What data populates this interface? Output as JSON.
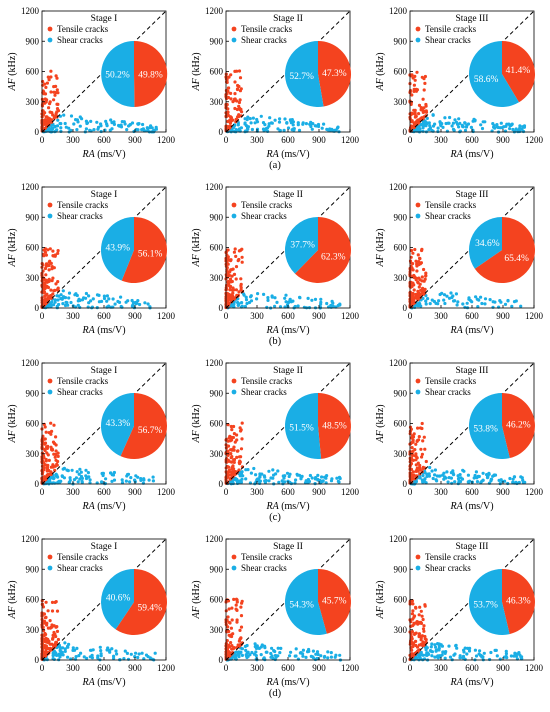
{
  "figure": {
    "row_labels": [
      "(a)",
      "(b)",
      "(c)",
      "(d)"
    ],
    "colors": {
      "tensile": "#f4431f",
      "shear": "#1aaee5",
      "axis": "#000000",
      "pie_text": "#ffffff"
    }
  },
  "chart_data": [
    {
      "type": "scatter",
      "row": 0,
      "col": 0,
      "title": "Stage I",
      "xlabel": "RA (ms/V)",
      "ylabel": "AF (kHz)",
      "xlim": [
        0,
        1200
      ],
      "ylim": [
        0,
        1200
      ],
      "xticks": [
        0,
        300,
        600,
        900,
        1200
      ],
      "yticks": [
        0,
        300,
        600,
        900,
        1200
      ],
      "grid": false,
      "legend_position": "top-left",
      "series": [
        {
          "name": "Tensile cracks",
          "color": "#f4431f"
        },
        {
          "name": "Shear cracks",
          "color": "#1aaee5"
        }
      ],
      "pie": {
        "tensile_pct": "49.8%",
        "shear_pct": "50.2%",
        "tensile": 49.8,
        "shear": 50.2
      }
    },
    {
      "type": "scatter",
      "row": 0,
      "col": 1,
      "title": "Stage II",
      "xlabel": "RA (ms/V)",
      "ylabel": "AF (kHz)",
      "xlim": [
        0,
        1200
      ],
      "ylim": [
        0,
        1200
      ],
      "xticks": [
        0,
        300,
        600,
        900,
        1200
      ],
      "yticks": [
        0,
        300,
        600,
        900,
        1200
      ],
      "grid": false,
      "legend_position": "top-left",
      "series": [
        {
          "name": "Tensile cracks",
          "color": "#f4431f"
        },
        {
          "name": "Shear cracks",
          "color": "#1aaee5"
        }
      ],
      "pie": {
        "tensile_pct": "47.3%",
        "shear_pct": "52.7%",
        "tensile": 47.3,
        "shear": 52.7
      }
    },
    {
      "type": "scatter",
      "row": 0,
      "col": 2,
      "title": "Stage III",
      "xlabel": "RA (ms/V)",
      "ylabel": "AF (kHz)",
      "xlim": [
        0,
        1200
      ],
      "ylim": [
        0,
        1200
      ],
      "xticks": [
        0,
        300,
        600,
        900,
        1200
      ],
      "yticks": [
        0,
        300,
        600,
        900,
        1200
      ],
      "grid": false,
      "legend_position": "top-left",
      "series": [
        {
          "name": "Tensile cracks",
          "color": "#f4431f"
        },
        {
          "name": "Shear cracks",
          "color": "#1aaee5"
        }
      ],
      "pie": {
        "tensile_pct": "41.4%",
        "shear_pct": "58.6%",
        "tensile": 41.4,
        "shear": 58.6
      }
    },
    {
      "type": "scatter",
      "row": 1,
      "col": 0,
      "title": "Stage I",
      "xlabel": "RA (ms/V)",
      "ylabel": "AF (kHz)",
      "xlim": [
        0,
        1200
      ],
      "ylim": [
        0,
        1200
      ],
      "xticks": [
        0,
        300,
        600,
        900,
        1200
      ],
      "yticks": [
        0,
        300,
        600,
        900,
        1200
      ],
      "grid": false,
      "legend_position": "top-left",
      "series": [
        {
          "name": "Tensile cracks",
          "color": "#f4431f"
        },
        {
          "name": "Shear cracks",
          "color": "#1aaee5"
        }
      ],
      "pie": {
        "tensile_pct": "56.1%",
        "shear_pct": "43.9%",
        "tensile": 56.1,
        "shear": 43.9
      }
    },
    {
      "type": "scatter",
      "row": 1,
      "col": 1,
      "title": "Stage II",
      "xlabel": "RA (ms/V)",
      "ylabel": "AF (kHz)",
      "xlim": [
        0,
        1200
      ],
      "ylim": [
        0,
        1200
      ],
      "xticks": [
        0,
        300,
        600,
        900,
        1200
      ],
      "yticks": [
        0,
        300,
        600,
        900,
        1200
      ],
      "grid": false,
      "legend_position": "top-left",
      "series": [
        {
          "name": "Tensile cracks",
          "color": "#f4431f"
        },
        {
          "name": "Shear cracks",
          "color": "#1aaee5"
        }
      ],
      "pie": {
        "tensile_pct": "62.3%",
        "shear_pct": "37.7%",
        "tensile": 62.3,
        "shear": 37.7
      }
    },
    {
      "type": "scatter",
      "row": 1,
      "col": 2,
      "title": "Stage III",
      "xlabel": "RA (ms/V)",
      "ylabel": "AF (kHz)",
      "xlim": [
        0,
        1200
      ],
      "ylim": [
        0,
        1200
      ],
      "xticks": [
        0,
        300,
        600,
        900,
        1200
      ],
      "yticks": [
        0,
        300,
        600,
        900,
        1200
      ],
      "grid": false,
      "legend_position": "top-left",
      "series": [
        {
          "name": "Tensile cracks",
          "color": "#f4431f"
        },
        {
          "name": "Shear cracks",
          "color": "#1aaee5"
        }
      ],
      "pie": {
        "tensile_pct": "65.4%",
        "shear_pct": "34.6%",
        "tensile": 65.4,
        "shear": 34.6
      }
    },
    {
      "type": "scatter",
      "row": 2,
      "col": 0,
      "title": "Stage I",
      "xlabel": "RA (ms/V)",
      "ylabel": "AF (kHz)",
      "xlim": [
        0,
        1200
      ],
      "ylim": [
        0,
        1200
      ],
      "xticks": [
        0,
        300,
        600,
        900,
        1200
      ],
      "yticks": [
        0,
        300,
        600,
        900,
        1200
      ],
      "grid": false,
      "legend_position": "top-left",
      "series": [
        {
          "name": "Tensile cracks",
          "color": "#f4431f"
        },
        {
          "name": "Shear cracks",
          "color": "#1aaee5"
        }
      ],
      "pie": {
        "tensile_pct": "56.7%",
        "shear_pct": "43.3%",
        "tensile": 56.7,
        "shear": 43.3
      }
    },
    {
      "type": "scatter",
      "row": 2,
      "col": 1,
      "title": "Stage II",
      "xlabel": "RA (ms/V)",
      "ylabel": "AF (kHz)",
      "xlim": [
        0,
        1200
      ],
      "ylim": [
        0,
        1200
      ],
      "xticks": [
        0,
        300,
        600,
        900,
        1200
      ],
      "yticks": [
        0,
        300,
        600,
        900,
        1200
      ],
      "grid": false,
      "legend_position": "top-left",
      "series": [
        {
          "name": "Tensile cracks",
          "color": "#f4431f"
        },
        {
          "name": "Shear cracks",
          "color": "#1aaee5"
        }
      ],
      "pie": {
        "tensile_pct": "48.5%",
        "shear_pct": "51.5%",
        "tensile": 48.5,
        "shear": 51.5
      }
    },
    {
      "type": "scatter",
      "row": 2,
      "col": 2,
      "title": "Stage III",
      "xlabel": "RA (ms/V)",
      "ylabel": "AF (kHz)",
      "xlim": [
        0,
        1200
      ],
      "ylim": [
        0,
        1200
      ],
      "xticks": [
        0,
        300,
        600,
        900,
        1200
      ],
      "yticks": [
        0,
        300,
        600,
        900,
        1200
      ],
      "grid": false,
      "legend_position": "top-left",
      "series": [
        {
          "name": "Tensile cracks",
          "color": "#f4431f"
        },
        {
          "name": "Shear cracks",
          "color": "#1aaee5"
        }
      ],
      "pie": {
        "tensile_pct": "46.2%",
        "shear_pct": "53.8%",
        "tensile": 46.2,
        "shear": 53.8
      }
    },
    {
      "type": "scatter",
      "row": 3,
      "col": 0,
      "title": "Stage I",
      "xlabel": "RA (ms/V)",
      "ylabel": "AF (kHz)",
      "xlim": [
        0,
        1200
      ],
      "ylim": [
        0,
        1200
      ],
      "xticks": [
        0,
        300,
        600,
        900,
        1200
      ],
      "yticks": [
        0,
        300,
        600,
        900,
        1200
      ],
      "grid": false,
      "legend_position": "top-left",
      "series": [
        {
          "name": "Tensile cracks",
          "color": "#f4431f"
        },
        {
          "name": "Shear cracks",
          "color": "#1aaee5"
        }
      ],
      "pie": {
        "tensile_pct": "59.4%",
        "shear_pct": "40.6%",
        "tensile": 59.4,
        "shear": 40.6
      }
    },
    {
      "type": "scatter",
      "row": 3,
      "col": 1,
      "title": "Stage II",
      "xlabel": "RA (ms/V)",
      "ylabel": "AF (kHz)",
      "xlim": [
        0,
        1200
      ],
      "ylim": [
        0,
        1200
      ],
      "xticks": [
        0,
        300,
        600,
        900,
        1200
      ],
      "yticks": [
        0,
        300,
        600,
        900,
        1200
      ],
      "grid": false,
      "legend_position": "top-left",
      "series": [
        {
          "name": "Tensile cracks",
          "color": "#f4431f"
        },
        {
          "name": "Shear cracks",
          "color": "#1aaee5"
        }
      ],
      "pie": {
        "tensile_pct": "45.7%",
        "shear_pct": "54.3%",
        "tensile": 45.7,
        "shear": 54.3
      }
    },
    {
      "type": "scatter",
      "row": 3,
      "col": 2,
      "title": "Stage III",
      "xlabel": "RA (ms/V)",
      "ylabel": "AF (kHz)",
      "xlim": [
        0,
        1200
      ],
      "ylim": [
        0,
        1200
      ],
      "xticks": [
        0,
        300,
        600,
        900,
        1200
      ],
      "yticks": [
        0,
        300,
        600,
        900,
        1200
      ],
      "grid": false,
      "legend_position": "top-left",
      "series": [
        {
          "name": "Tensile cracks",
          "color": "#f4431f"
        },
        {
          "name": "Shear cracks",
          "color": "#1aaee5"
        }
      ],
      "pie": {
        "tensile_pct": "46.3%",
        "shear_pct": "53.7%",
        "tensile": 46.3,
        "shear": 53.7
      }
    }
  ]
}
